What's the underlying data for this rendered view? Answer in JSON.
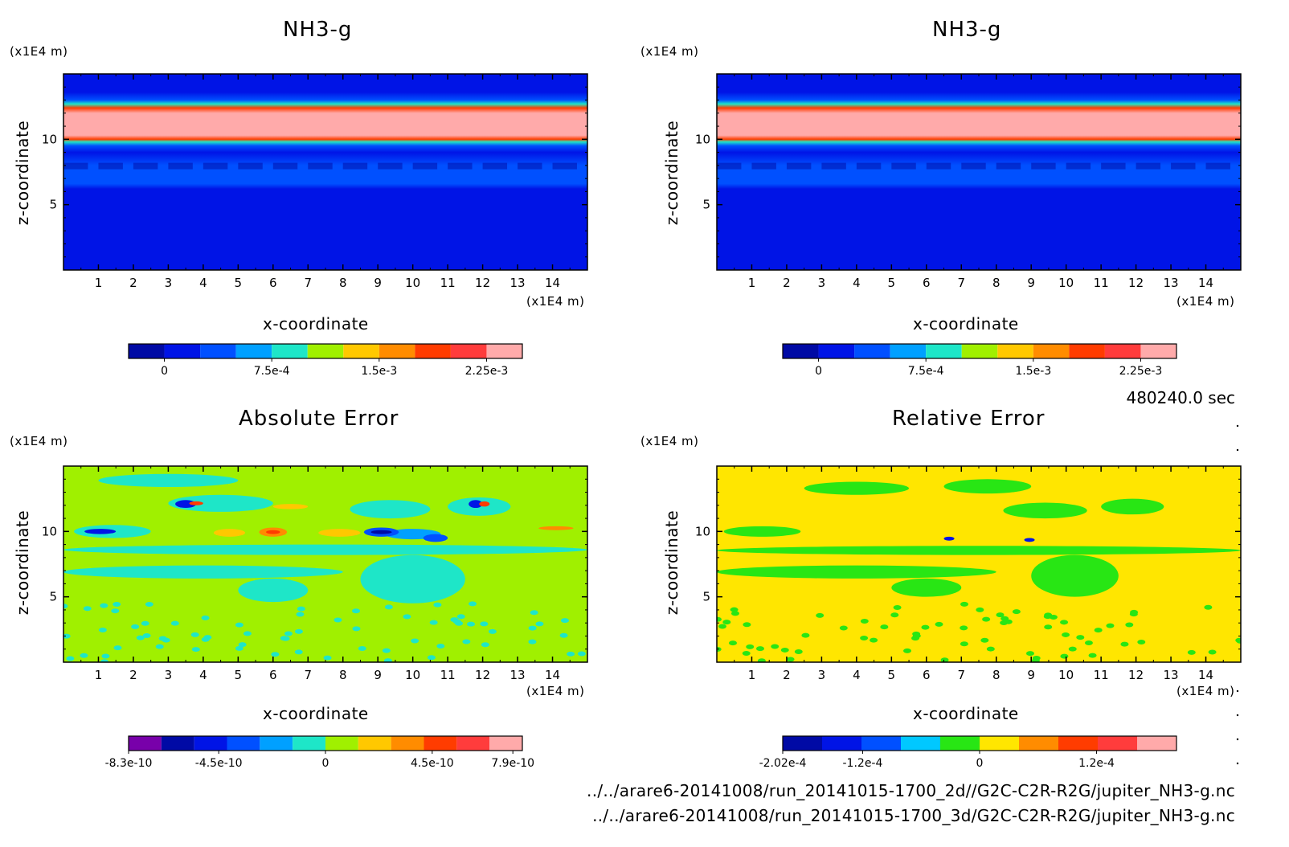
{
  "time_label": "480240.0 sec",
  "files": [
    "../../arare6-20141008/run_20141015-1700_2d//G2C-C2R-R2G/jupiter_NH3-g.nc",
    "../../arare6-20141008/run_20141015-1700_3d/G2C-C2R-R2G/jupiter_NH3-g.nc"
  ],
  "chart_data": [
    {
      "type": "heatmap",
      "title": "NH3-g",
      "xlabel": "x-coordinate",
      "ylabel": "z-coordinate",
      "x_unit": "(x1E4 m)",
      "y_unit": "(x1E4 m)",
      "x_ticks": [
        1,
        2,
        3,
        4,
        5,
        6,
        7,
        8,
        9,
        10,
        11,
        12,
        13,
        14
      ],
      "y_ticks": [
        5,
        10
      ],
      "xlim": [
        0,
        15
      ],
      "ylim": [
        0,
        15
      ],
      "colorbar": {
        "colors": [
          "#000aa5",
          "#0014e6",
          "#0050ff",
          "#00a0ff",
          "#1ee6c8",
          "#a0f000",
          "#ffc800",
          "#ff8c00",
          "#ff3c00",
          "#ff3c3c",
          "#ffaaaa"
        ],
        "tick_labels": [
          "0",
          "7.5e-4",
          "1.5e-3",
          "2.25e-3"
        ],
        "tick_values": [
          0,
          0.00075,
          0.0015,
          0.00225
        ],
        "range": [
          -0.00025,
          0.0025
        ]
      },
      "z_profile": [
        {
          "z": 0,
          "level": 1
        },
        {
          "z": 6.2,
          "level": 1
        },
        {
          "z": 6.6,
          "level": 1.5
        },
        {
          "z": 8.0,
          "level": 1.6
        },
        {
          "z": 9.0,
          "level": 1.3
        },
        {
          "z": 9.5,
          "level": 2
        },
        {
          "z": 9.8,
          "level": 4
        },
        {
          "z": 10.0,
          "level": 8
        },
        {
          "z": 10.3,
          "level": 10
        },
        {
          "z": 12.0,
          "level": 10
        },
        {
          "z": 12.4,
          "level": 8
        },
        {
          "z": 12.7,
          "level": 4
        },
        {
          "z": 13.0,
          "level": 2
        },
        {
          "z": 13.6,
          "level": 1
        },
        {
          "z": 15,
          "level": 1
        }
      ]
    },
    {
      "type": "heatmap",
      "title": "NH3-g",
      "xlabel": "x-coordinate",
      "ylabel": "z-coordinate",
      "x_unit": "(x1E4 m)",
      "y_unit": "(x1E4 m)",
      "x_ticks": [
        1,
        2,
        3,
        4,
        5,
        6,
        7,
        8,
        9,
        10,
        11,
        12,
        13,
        14
      ],
      "y_ticks": [
        5,
        10
      ],
      "xlim": [
        0,
        15
      ],
      "ylim": [
        0,
        15
      ],
      "colorbar": {
        "colors": [
          "#000aa5",
          "#0014e6",
          "#0050ff",
          "#00a0ff",
          "#1ee6c8",
          "#a0f000",
          "#ffc800",
          "#ff8c00",
          "#ff3c00",
          "#ff3c3c",
          "#ffaaaa"
        ],
        "tick_labels": [
          "0",
          "7.5e-4",
          "1.5e-3",
          "2.25e-3"
        ],
        "tick_values": [
          0,
          0.00075,
          0.0015,
          0.00225
        ],
        "range": [
          -0.00025,
          0.0025
        ]
      },
      "z_profile": [
        {
          "z": 0,
          "level": 1
        },
        {
          "z": 6.2,
          "level": 1
        },
        {
          "z": 6.6,
          "level": 1.5
        },
        {
          "z": 8.0,
          "level": 1.6
        },
        {
          "z": 9.0,
          "level": 1.3
        },
        {
          "z": 9.5,
          "level": 2
        },
        {
          "z": 9.8,
          "level": 4
        },
        {
          "z": 10.0,
          "level": 8
        },
        {
          "z": 10.3,
          "level": 10
        },
        {
          "z": 12.0,
          "level": 10
        },
        {
          "z": 12.4,
          "level": 8
        },
        {
          "z": 12.7,
          "level": 4
        },
        {
          "z": 13.0,
          "level": 2
        },
        {
          "z": 13.6,
          "level": 1
        },
        {
          "z": 15,
          "level": 1
        }
      ]
    },
    {
      "type": "heatmap",
      "title": "Absolute Error",
      "xlabel": "x-coordinate",
      "ylabel": "z-coordinate",
      "x_unit": "(x1E4 m)",
      "y_unit": "(x1E4 m)",
      "x_ticks": [
        1,
        2,
        3,
        4,
        5,
        6,
        7,
        8,
        9,
        10,
        11,
        12,
        13,
        14
      ],
      "y_ticks": [
        5,
        10
      ],
      "xlim": [
        0,
        15
      ],
      "ylim": [
        0,
        15
      ],
      "background_color": "#a0f000",
      "colorbar": {
        "colors": [
          "#7800aa",
          "#000aa5",
          "#0014e6",
          "#0050ff",
          "#00a0ff",
          "#1ee6c8",
          "#a0f000",
          "#ffc800",
          "#ff8c00",
          "#ff3c00",
          "#ff3c3c",
          "#ffaaaa"
        ],
        "tick_labels": [
          "-8.3e-10",
          "-4.5e-10",
          "0",
          "4.5e-10",
          "7.9e-10"
        ],
        "tick_values": [
          -8.3e-10,
          -4.5e-10,
          0,
          4.5e-10,
          7.9e-10
        ],
        "range": [
          -8.3e-10,
          8.3e-10
        ]
      },
      "features": [
        {
          "x0": 0,
          "x1": 8,
          "z0": 6.4,
          "z1": 7.4,
          "color": "#1ee6c8"
        },
        {
          "x0": 5,
          "x1": 7,
          "z0": 4.6,
          "z1": 6.4,
          "color": "#1ee6c8"
        },
        {
          "x0": 0,
          "x1": 15,
          "z0": 8.2,
          "z1": 9.0,
          "color": "#1ee6c8"
        },
        {
          "x0": 8.5,
          "x1": 11.5,
          "z0": 4.5,
          "z1": 8.2,
          "color": "#1ee6c8"
        },
        {
          "x0": 0.3,
          "x1": 2.5,
          "z0": 9.5,
          "z1": 10.5,
          "color": "#1ee6c8"
        },
        {
          "x0": 3,
          "x1": 6,
          "z0": 11.5,
          "z1": 12.8,
          "color": "#1ee6c8"
        },
        {
          "x0": 8.2,
          "x1": 10.5,
          "z0": 11,
          "z1": 12.4,
          "color": "#1ee6c8"
        },
        {
          "x0": 11,
          "x1": 12.8,
          "z0": 11.2,
          "z1": 12.6,
          "color": "#1ee6c8"
        },
        {
          "x0": 1,
          "x1": 5,
          "z0": 13.4,
          "z1": 14.4,
          "color": "#1ee6c8"
        },
        {
          "x0": 9.2,
          "x1": 10.8,
          "z0": 9.4,
          "z1": 10.2,
          "color": "#00a0ff"
        },
        {
          "x0": 8.6,
          "x1": 9.6,
          "z0": 9.6,
          "z1": 10.3,
          "color": "#0050ff"
        },
        {
          "x0": 8.8,
          "x1": 9.4,
          "z0": 9.8,
          "z1": 10.1,
          "color": "#000aa5"
        },
        {
          "x0": 5.6,
          "x1": 6.4,
          "z0": 9.6,
          "z1": 10.3,
          "color": "#ff8c00"
        },
        {
          "x0": 5.8,
          "x1": 6.2,
          "z0": 9.8,
          "z1": 10.1,
          "color": "#ff3c00"
        },
        {
          "x0": 3.2,
          "x1": 3.8,
          "z0": 11.8,
          "z1": 12.4,
          "color": "#0014e6"
        },
        {
          "x0": 3.6,
          "x1": 4.0,
          "z0": 12.0,
          "z1": 12.3,
          "color": "#ff3c00"
        },
        {
          "x0": 11.6,
          "x1": 12.0,
          "z0": 11.8,
          "z1": 12.4,
          "color": "#0014e6"
        },
        {
          "x0": 11.9,
          "x1": 12.2,
          "z0": 11.9,
          "z1": 12.3,
          "color": "#ff3c00"
        },
        {
          "x0": 0.6,
          "x1": 1.5,
          "z0": 9.8,
          "z1": 10.2,
          "color": "#0014e6"
        },
        {
          "x0": 4.3,
          "x1": 5.2,
          "z0": 9.6,
          "z1": 10.2,
          "color": "#ffc800"
        },
        {
          "x0": 7.3,
          "x1": 8.5,
          "z0": 9.6,
          "z1": 10.2,
          "color": "#ffc800"
        },
        {
          "x0": 13.6,
          "x1": 14.6,
          "z0": 10.1,
          "z1": 10.4,
          "color": "#ff8c00"
        },
        {
          "x0": 6,
          "x1": 7,
          "z0": 11.7,
          "z1": 12.1,
          "color": "#ffc800"
        },
        {
          "x0": 10.3,
          "x1": 11,
          "z0": 9.2,
          "z1": 9.8,
          "color": "#0050ff"
        }
      ]
    },
    {
      "type": "heatmap",
      "title": "Relative Error",
      "xlabel": "x-coordinate",
      "ylabel": "z-coordinate",
      "x_unit": "(x1E4 m)",
      "y_unit": "(x1E4 m)",
      "x_ticks": [
        1,
        2,
        3,
        4,
        5,
        6,
        7,
        8,
        9,
        10,
        11,
        12,
        13,
        14
      ],
      "y_ticks": [
        5,
        10
      ],
      "xlim": [
        0,
        15
      ],
      "ylim": [
        0,
        15
      ],
      "background_color": "#ffe600",
      "colorbar": {
        "colors": [
          "#000aa5",
          "#0014e6",
          "#0050ff",
          "#00c8ff",
          "#28e614",
          "#ffe600",
          "#ff8c00",
          "#ff3c00",
          "#ff3c3c",
          "#ffaaaa"
        ],
        "tick_labels": [
          "-2.02e-4",
          "-1.2e-4",
          "0",
          "1.2e-4"
        ],
        "tick_values": [
          -0.000202,
          -0.00012,
          0,
          0.00012
        ],
        "range": [
          -0.000202,
          0.000202
        ]
      },
      "features": [
        {
          "x0": 0,
          "x1": 8,
          "z0": 6.4,
          "z1": 7.4,
          "color": "#28e614"
        },
        {
          "x0": 0,
          "x1": 15,
          "z0": 8.2,
          "z1": 8.9,
          "color": "#28e614"
        },
        {
          "x0": 5,
          "x1": 7,
          "z0": 5.0,
          "z1": 6.4,
          "color": "#28e614"
        },
        {
          "x0": 9,
          "x1": 11.5,
          "z0": 5.0,
          "z1": 8.2,
          "color": "#28e614"
        },
        {
          "x0": 0.2,
          "x1": 2.4,
          "z0": 9.6,
          "z1": 10.4,
          "color": "#28e614"
        },
        {
          "x0": 8.2,
          "x1": 10.6,
          "z0": 11,
          "z1": 12.2,
          "color": "#28e614"
        },
        {
          "x0": 11,
          "x1": 12.8,
          "z0": 11.3,
          "z1": 12.5,
          "color": "#28e614"
        },
        {
          "x0": 2.5,
          "x1": 5.5,
          "z0": 12.8,
          "z1": 13.8,
          "color": "#28e614"
        },
        {
          "x0": 6.5,
          "x1": 9,
          "z0": 12.9,
          "z1": 14,
          "color": "#28e614"
        },
        {
          "x0": 6.5,
          "x1": 6.8,
          "z0": 9.3,
          "z1": 9.6,
          "color": "#0014e6"
        },
        {
          "x0": 8.8,
          "x1": 9.1,
          "z0": 9.2,
          "z1": 9.5,
          "color": "#0014e6"
        }
      ]
    }
  ]
}
